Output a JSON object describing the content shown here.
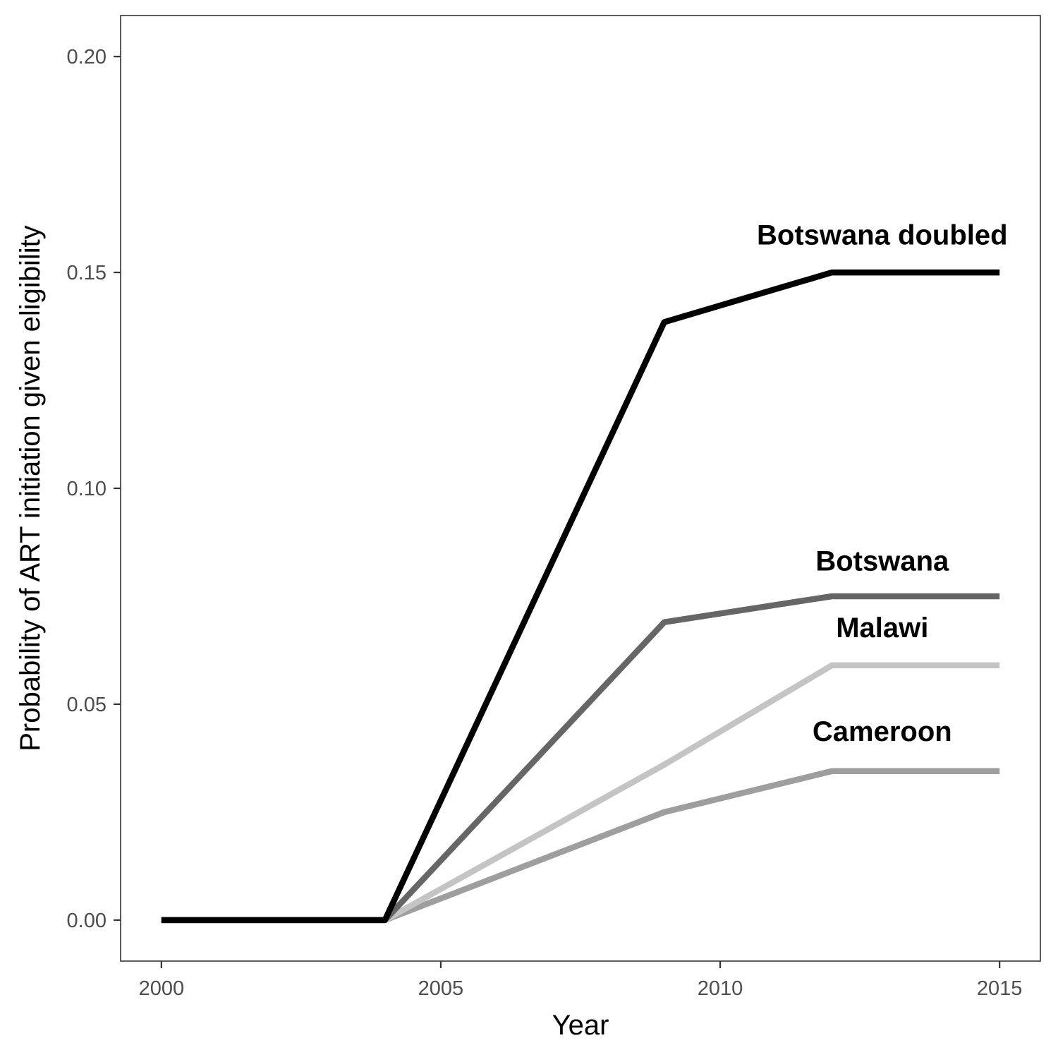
{
  "chart_data": {
    "type": "line",
    "title": "",
    "xlabel": "Year",
    "ylabel": "Probability of ART initiation given eligibility",
    "xlim": [
      1999.27,
      2015.73
    ],
    "ylim": [
      -0.0095,
      0.2095
    ],
    "x_ticks": [
      2000,
      2005,
      2010,
      2015
    ],
    "x_tick_labels": [
      "2000",
      "2005",
      "2010",
      "2015"
    ],
    "y_ticks": [
      0.0,
      0.05,
      0.1,
      0.15,
      0.2
    ],
    "y_tick_labels": [
      "0.00",
      "0.05",
      "0.10",
      "0.15",
      "0.20"
    ],
    "grid": false,
    "legend": "none",
    "x": [
      2000,
      2004,
      2009,
      2012,
      2015
    ],
    "series": [
      {
        "name": "Cameroon",
        "color": "#9e9e9e",
        "values": [
          0,
          0,
          0.025,
          0.0345,
          0.0345
        ],
        "label_x": 2012.9,
        "label_y": 0.0415
      },
      {
        "name": "Malawi",
        "color": "#c4c4c4",
        "values": [
          0,
          0,
          0.036,
          0.059,
          0.059
        ],
        "label_x": 2012.9,
        "label_y": 0.0655
      },
      {
        "name": "Botswana",
        "color": "#666666",
        "values": [
          0,
          0,
          0.069,
          0.075,
          0.075
        ],
        "label_x": 2012.9,
        "label_y": 0.081
      },
      {
        "name": "Botswana doubled",
        "color": "#000000",
        "values": [
          0,
          0,
          0.1385,
          0.15,
          0.15
        ],
        "label_x": 2012.9,
        "label_y": 0.1565
      }
    ]
  }
}
